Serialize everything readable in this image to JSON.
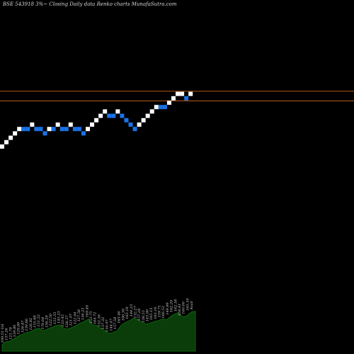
{
  "header": {
    "title": "BSE 543918 3%~  Closing Daily data  Renko  charts MunafaSutra.com"
  },
  "chart_data": {
    "type": "renko",
    "title": "BSE 543918 3%~  Closing Daily data  Renko  charts MunafaSutra.com",
    "box_size_percent": 3,
    "box_levels": [
      0,
      1,
      2,
      3,
      4,
      4,
      4,
      5,
      4,
      4,
      3,
      4,
      4,
      5,
      4,
      4,
      5,
      4,
      4,
      3,
      4,
      5,
      6,
      7,
      8,
      7,
      7,
      8,
      7,
      6,
      5,
      4,
      5,
      6,
      7,
      8,
      9,
      9,
      9,
      10,
      11,
      12,
      12,
      11,
      12
    ],
    "box_colors": [
      "white",
      "white",
      "white",
      "white",
      "white",
      "blue",
      "blue",
      "white",
      "blue",
      "blue",
      "blue",
      "white",
      "blue",
      "white",
      "blue",
      "blue",
      "white",
      "blue",
      "blue",
      "blue",
      "white",
      "white",
      "white",
      "white",
      "white",
      "blue",
      "blue",
      "white",
      "blue",
      "blue",
      "blue",
      "blue",
      "white",
      "white",
      "white",
      "white",
      "white",
      "blue",
      "blue",
      "white",
      "white",
      "white",
      "white",
      "blue",
      "white"
    ],
    "colors": {
      "up_box": "#ffffff",
      "down_box": "#1a73e8",
      "reference_line": "#b85a1e",
      "volume_fill": "#0a3d0a",
      "volume_stroke": "#0f6f0f",
      "background": "#000000"
    },
    "reference_lines": [
      12.6,
      10.4
    ],
    "volume": {
      "values": [
        8,
        11,
        12,
        15,
        18,
        20,
        22,
        23,
        26,
        27,
        24,
        26,
        28,
        30,
        31,
        27,
        26,
        28,
        30,
        33,
        35,
        38,
        31,
        30,
        27,
        24,
        21,
        22,
        24,
        31,
        34,
        36,
        39,
        37,
        34,
        32,
        33,
        35,
        36,
        38,
        37,
        41,
        44,
        45,
        40,
        42,
        46,
        47
      ],
      "labels": [
        "199.51 Vol",
        "137.26",
        "121.78",
        "139.86",
        "129.80",
        "126.87",
        "139.86",
        "126.82",
        "155.68",
        "151.52",
        "170.64",
        "156.29",
        "122.50",
        "153.55",
        "145.23",
        "133.45",
        "128.37",
        "121.97",
        "122.94",
        "127.56",
        "156.23",
        "169.49",
        "153.75",
        "164.72",
        "152.36",
        "157.32",
        "150.97",
        "144.47",
        "157.58",
        "163.46",
        "160.30",
        "163.18",
        "144.23",
        "132.27",
        "157.28",
        "138.55",
        "145.90",
        "165.13",
        "163.16",
        "159.71",
        "166.52",
        "149.99",
        "162.29",
        "162.58",
        "156.61",
        "160.00",
        "163.59",
        "Avail"
      ]
    }
  }
}
